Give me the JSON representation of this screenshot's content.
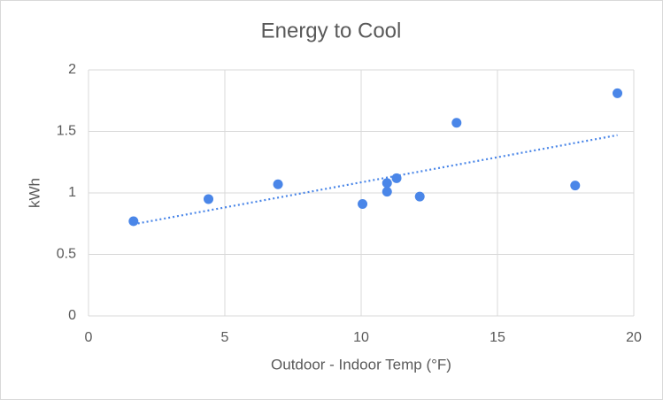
{
  "chart_data": {
    "type": "scatter",
    "title": "Energy to Cool",
    "x_label": "Outdoor - Indoor Temp (°F)",
    "y_label": "kWh",
    "series": [
      {
        "color": "#4a86e8",
        "x": [
          1.65,
          4.4,
          6.95,
          10.05,
          10.95,
          10.95,
          11.3,
          12.15,
          13.5,
          17.85,
          19.4
        ],
        "values": [
          0.77,
          0.95,
          1.07,
          0.91,
          1.08,
          1.01,
          1.12,
          0.97,
          1.57,
          1.06,
          1.81
        ]
      }
    ],
    "trendline": "linear",
    "xlim": [
      0,
      20
    ],
    "xticks": [
      0,
      5,
      10,
      15,
      20
    ],
    "ylim": [
      0,
      2
    ],
    "yticks": [
      0,
      {
        "value": 0.5,
        "label": "0.5"
      },
      1,
      {
        "value": 1.5,
        "label": "1.5"
      },
      2
    ],
    "grid": true
  }
}
